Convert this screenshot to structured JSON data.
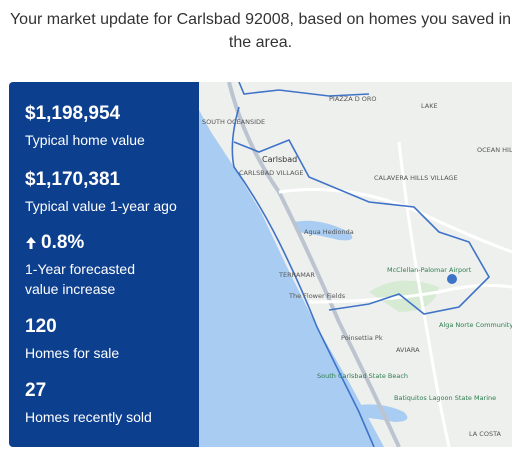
{
  "header": {
    "title": "Your market update for Carlsbad 92008, based on homes you saved in the area."
  },
  "stats": [
    {
      "value": "$1,198,954",
      "label": "Typical home value"
    },
    {
      "value": "$1,170,381",
      "label": "Typical value 1-year ago"
    },
    {
      "value": "0.8%",
      "label": "1-Year forecasted value increase"
    },
    {
      "value": "120",
      "label": "Homes for sale"
    },
    {
      "value": "27",
      "label": "Homes recently sold"
    }
  ],
  "map": {
    "labels": [
      "PIAZZA D ORO",
      "LAKE",
      "SOUTH OCEANSIDE",
      "Carlsbad",
      "CARLSBAD VILLAGE",
      "OCEAN HILLS",
      "CALAVERA HILLS VILLAGE",
      "Agua Hedionda",
      "TERRAMAR",
      "The Flower Fields",
      "McClellan-Palomar Airport",
      "Poinsettia Pk",
      "AVIARA",
      "Alga Norte Community",
      "South Carlsbad State Beach",
      "Batiquitos Lagoon State Marine",
      "LA COSTA"
    ]
  }
}
